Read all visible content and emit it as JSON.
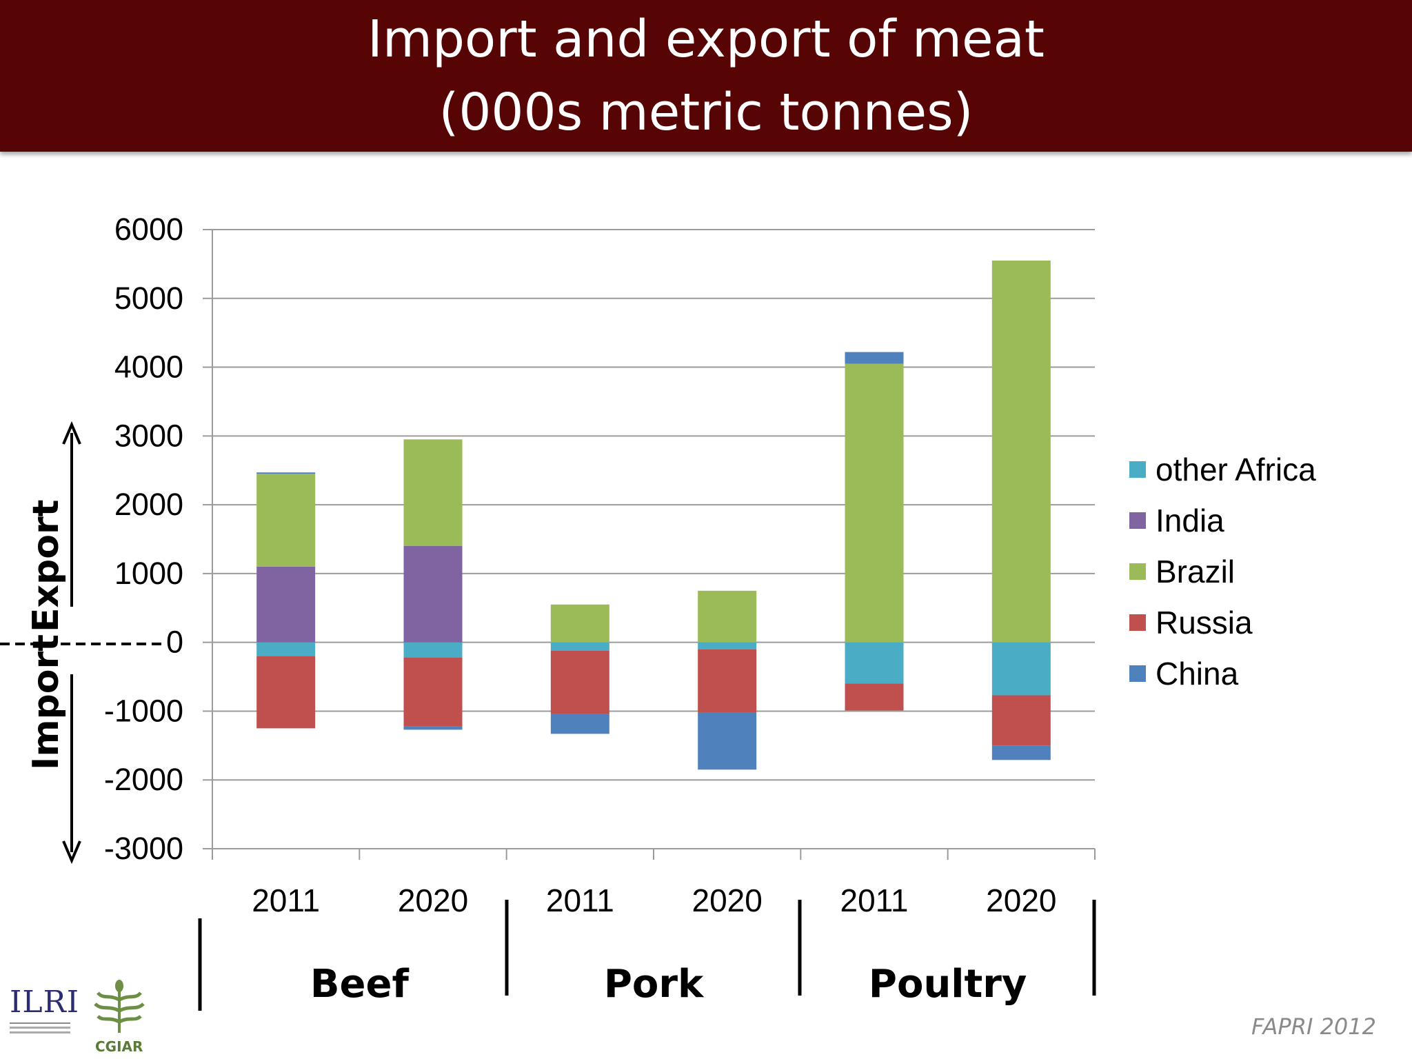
{
  "title": {
    "line1": "Import and export of meat",
    "line2": "(000s metric tonnes)"
  },
  "side_labels": {
    "export": "Export",
    "import": "Import"
  },
  "source": "FAPRI 2012",
  "logos": {
    "ilri": "ILRI",
    "cgiar": "CGIAR"
  },
  "chart_data": {
    "type": "bar",
    "stacked": true,
    "ylim": [
      -3000,
      6000
    ],
    "yticks": [
      6000,
      5000,
      4000,
      3000,
      2000,
      1000,
      0,
      -1000,
      -2000,
      -3000
    ],
    "categories": [
      "2011",
      "2020",
      "2011",
      "2020",
      "2011",
      "2020"
    ],
    "groups": [
      {
        "label": "Beef",
        "categories": [
          0,
          1
        ]
      },
      {
        "label": "Pork",
        "categories": [
          2,
          3
        ]
      },
      {
        "label": "Poultry",
        "categories": [
          4,
          5
        ]
      }
    ],
    "grid": true,
    "legend_position": "right",
    "series": [
      {
        "name": "other Africa",
        "color": "#4bacc6",
        "values": [
          -200,
          -220,
          -120,
          -100,
          -600,
          -770
        ]
      },
      {
        "name": "India",
        "color": "#8064a2",
        "values": [
          1100,
          1400,
          0,
          0,
          0,
          0
        ]
      },
      {
        "name": "Brazil",
        "color": "#9bbb59",
        "values": [
          1350,
          1550,
          550,
          750,
          4050,
          5550
        ]
      },
      {
        "name": "Russia",
        "color": "#c0504d",
        "values": [
          -1050,
          -1000,
          -920,
          -920,
          -390,
          -730
        ]
      },
      {
        "name": "China",
        "color": "#4f81bd",
        "values": [
          20,
          -50,
          -290,
          -830,
          170,
          -210
        ]
      }
    ]
  }
}
